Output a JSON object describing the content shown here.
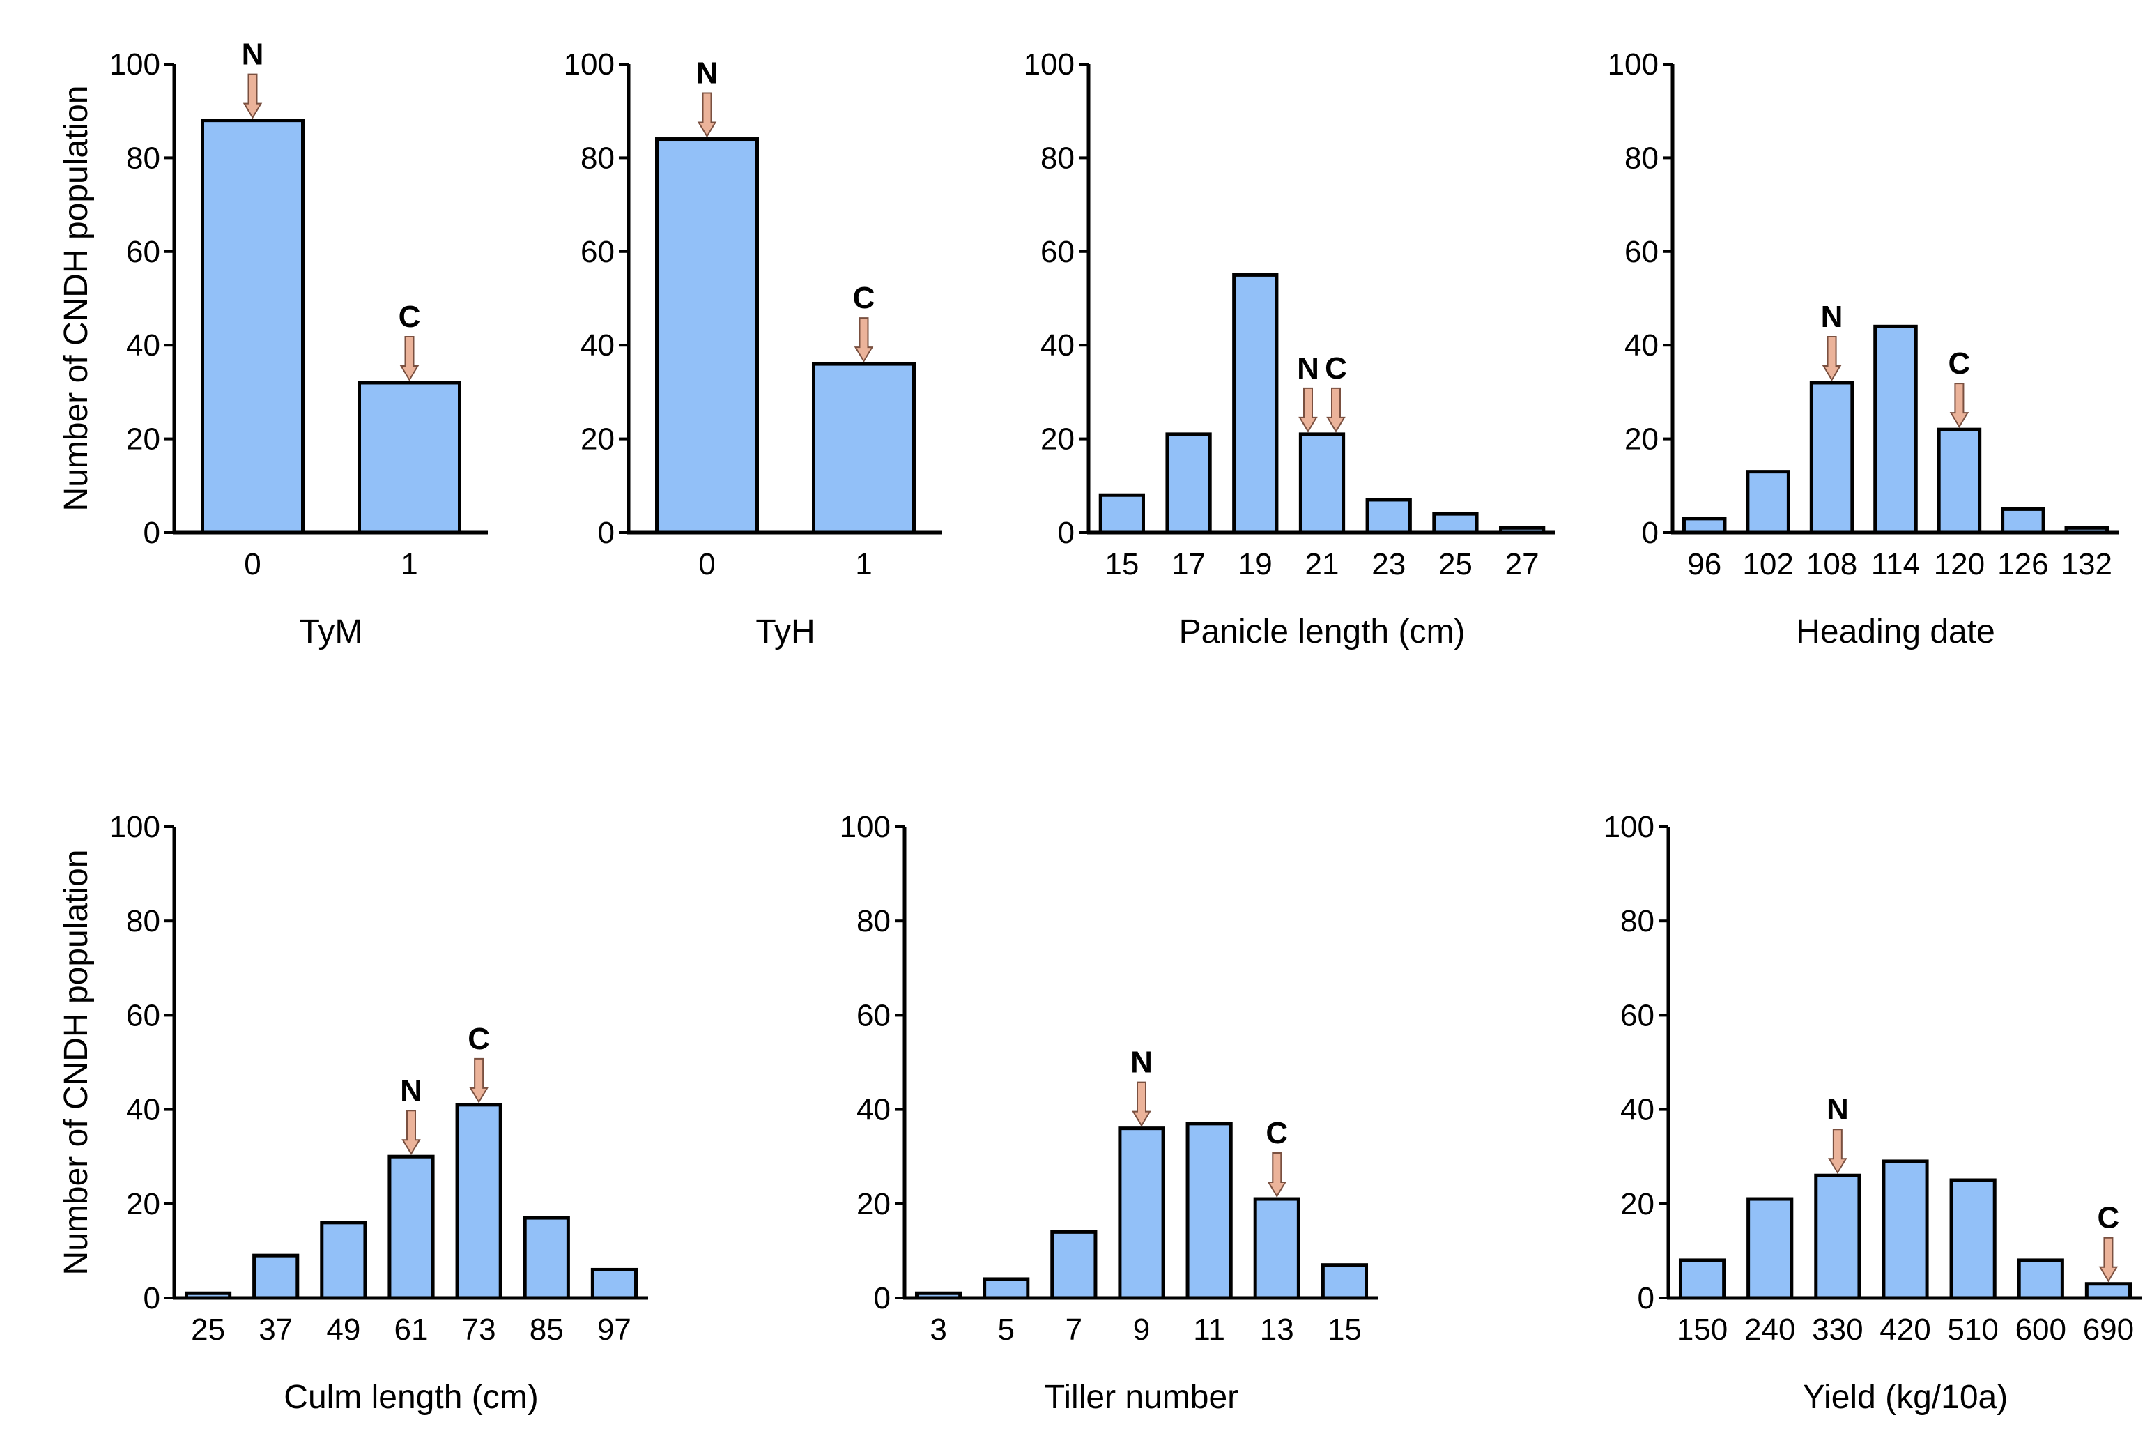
{
  "bar_color": "#92C0F8",
  "arrow_color": "#EBB39A",
  "chart_data": [
    {
      "type": "bar",
      "xlabel": "TyM",
      "ylabel": "Number of CNDH population",
      "ylim": [
        0,
        100
      ],
      "yticks": [
        0,
        20,
        40,
        60,
        80,
        100
      ],
      "categories": [
        "0",
        "1"
      ],
      "values": [
        88,
        32
      ],
      "markers": [
        {
          "label": "N",
          "category": "0"
        },
        {
          "label": "C",
          "category": "1"
        }
      ]
    },
    {
      "type": "bar",
      "xlabel": "TyH",
      "ylabel": "",
      "ylim": [
        0,
        100
      ],
      "yticks": [
        0,
        20,
        40,
        60,
        80,
        100
      ],
      "categories": [
        "0",
        "1"
      ],
      "values": [
        84,
        36
      ],
      "markers": [
        {
          "label": "N",
          "category": "0"
        },
        {
          "label": "C",
          "category": "1"
        }
      ]
    },
    {
      "type": "bar",
      "xlabel": "Panicle length (cm)",
      "ylabel": "",
      "ylim": [
        0,
        100
      ],
      "yticks": [
        0,
        20,
        40,
        60,
        80,
        100
      ],
      "categories": [
        "15",
        "17",
        "19",
        "21",
        "23",
        "25",
        "27"
      ],
      "values": [
        8,
        21,
        55,
        21,
        7,
        4,
        1
      ],
      "markers": [
        {
          "label": "N",
          "category": "21"
        },
        {
          "label": "C",
          "category": "21"
        }
      ]
    },
    {
      "type": "bar",
      "xlabel": "Heading date",
      "ylabel": "",
      "ylim": [
        0,
        100
      ],
      "yticks": [
        0,
        20,
        40,
        60,
        80,
        100
      ],
      "categories": [
        "96",
        "102",
        "108",
        "114",
        "120",
        "126",
        "132"
      ],
      "values": [
        3,
        13,
        32,
        44,
        22,
        5,
        1
      ],
      "markers": [
        {
          "label": "N",
          "category": "108"
        },
        {
          "label": "C",
          "category": "120"
        }
      ]
    },
    {
      "type": "bar",
      "xlabel": "Culm length (cm)",
      "ylabel": "Number of CNDH population",
      "ylim": [
        0,
        100
      ],
      "yticks": [
        0,
        20,
        40,
        60,
        80,
        100
      ],
      "categories": [
        "25",
        "37",
        "49",
        "61",
        "73",
        "85",
        "97"
      ],
      "values": [
        1,
        9,
        16,
        30,
        41,
        17,
        6
      ],
      "markers": [
        {
          "label": "N",
          "category": "61"
        },
        {
          "label": "C",
          "category": "73"
        }
      ]
    },
    {
      "type": "bar",
      "xlabel": "Tiller number",
      "ylabel": "",
      "ylim": [
        0,
        100
      ],
      "yticks": [
        0,
        20,
        40,
        60,
        80,
        100
      ],
      "categories": [
        "3",
        "5",
        "7",
        "9",
        "11",
        "13",
        "15"
      ],
      "values": [
        1,
        4,
        14,
        36,
        37,
        21,
        7
      ],
      "markers": [
        {
          "label": "N",
          "category": "9"
        },
        {
          "label": "C",
          "category": "13"
        }
      ]
    },
    {
      "type": "bar",
      "xlabel": "Yield (kg/10a)",
      "ylabel": "",
      "ylim": [
        0,
        100
      ],
      "yticks": [
        0,
        20,
        40,
        60,
        80,
        100
      ],
      "categories": [
        "150",
        "240",
        "330",
        "420",
        "510",
        "600",
        "690"
      ],
      "values": [
        8,
        21,
        26,
        29,
        25,
        8,
        3
      ],
      "markers": [
        {
          "label": "N",
          "category": "330"
        },
        {
          "label": "C",
          "category": "690"
        }
      ]
    }
  ]
}
